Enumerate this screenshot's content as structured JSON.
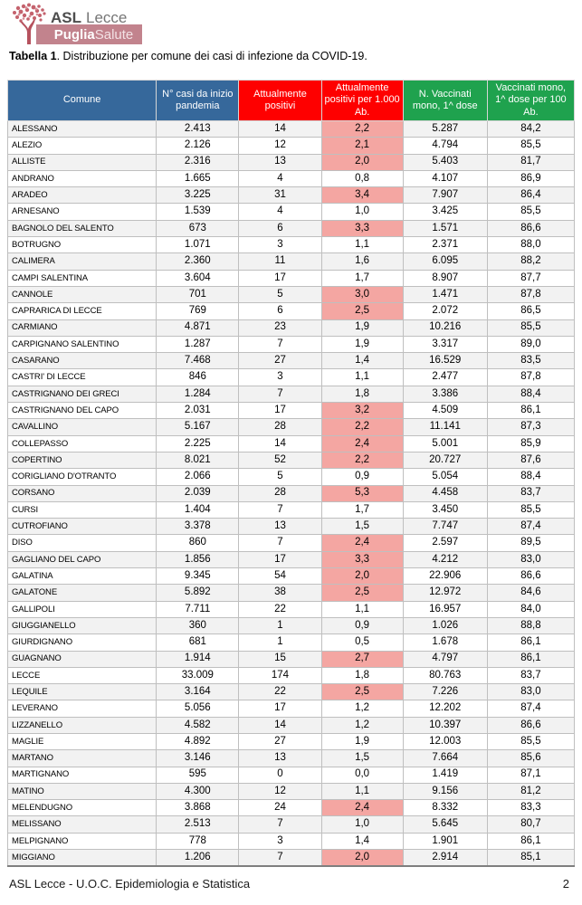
{
  "logo": {
    "org_bold": "ASL",
    "org_rest": "Lecce",
    "banner_bold": "Puglia",
    "banner_rest": "Salute"
  },
  "title": {
    "bold": "Tabella 1",
    "rest": ". Distribuzione per comune dei casi di infezione da COVID-19."
  },
  "table": {
    "columns": [
      {
        "label": "Comune",
        "color": "#36689b"
      },
      {
        "label": "N° casi da inizio pandemia",
        "color": "#36689b"
      },
      {
        "label": "Attualmente positivi",
        "color": "#fe0000"
      },
      {
        "label": "Attualmente positivi per 1.000 Ab.",
        "color": "#fe0000"
      },
      {
        "label": "N. Vaccinati mono, 1^ dose",
        "color": "#1fa24e"
      },
      {
        "label": "Vaccinati mono, 1^ dose per 100 Ab.",
        "color": "#1fa24e"
      }
    ],
    "highlight": {
      "column_index": 3,
      "threshold": 2.0,
      "color": "#f4a6a2"
    },
    "rows": [
      [
        "ALESSANO",
        "2.413",
        "14",
        "2,2",
        "5.287",
        "84,2"
      ],
      [
        "ALEZIO",
        "2.126",
        "12",
        "2,1",
        "4.794",
        "85,5"
      ],
      [
        "ALLISTE",
        "2.316",
        "13",
        "2,0",
        "5.403",
        "81,7"
      ],
      [
        "ANDRANO",
        "1.665",
        "4",
        "0,8",
        "4.107",
        "86,9"
      ],
      [
        "ARADEO",
        "3.225",
        "31",
        "3,4",
        "7.907",
        "86,4"
      ],
      [
        "ARNESANO",
        "1.539",
        "4",
        "1,0",
        "3.425",
        "85,5"
      ],
      [
        "BAGNOLO DEL SALENTO",
        "673",
        "6",
        "3,3",
        "1.571",
        "86,6"
      ],
      [
        "BOTRUGNO",
        "1.071",
        "3",
        "1,1",
        "2.371",
        "88,0"
      ],
      [
        "CALIMERA",
        "2.360",
        "11",
        "1,6",
        "6.095",
        "88,2"
      ],
      [
        "CAMPI SALENTINA",
        "3.604",
        "17",
        "1,7",
        "8.907",
        "87,7"
      ],
      [
        "CANNOLE",
        "701",
        "5",
        "3,0",
        "1.471",
        "87,8"
      ],
      [
        "CAPRARICA DI LECCE",
        "769",
        "6",
        "2,5",
        "2.072",
        "86,5"
      ],
      [
        "CARMIANO",
        "4.871",
        "23",
        "1,9",
        "10.216",
        "85,5"
      ],
      [
        "CARPIGNANO SALENTINO",
        "1.287",
        "7",
        "1,9",
        "3.317",
        "89,0"
      ],
      [
        "CASARANO",
        "7.468",
        "27",
        "1,4",
        "16.529",
        "83,5"
      ],
      [
        "CASTRI' DI LECCE",
        "846",
        "3",
        "1,1",
        "2.477",
        "87,8"
      ],
      [
        "CASTRIGNANO DEI GRECI",
        "1.284",
        "7",
        "1,8",
        "3.386",
        "88,4"
      ],
      [
        "CASTRIGNANO DEL CAPO",
        "2.031",
        "17",
        "3,2",
        "4.509",
        "86,1"
      ],
      [
        "CAVALLINO",
        "5.167",
        "28",
        "2,2",
        "11.141",
        "87,3"
      ],
      [
        "COLLEPASSO",
        "2.225",
        "14",
        "2,4",
        "5.001",
        "85,9"
      ],
      [
        "COPERTINO",
        "8.021",
        "52",
        "2,2",
        "20.727",
        "87,6"
      ],
      [
        "CORIGLIANO D'OTRANTO",
        "2.066",
        "5",
        "0,9",
        "5.054",
        "88,4"
      ],
      [
        "CORSANO",
        "2.039",
        "28",
        "5,3",
        "4.458",
        "83,7"
      ],
      [
        "CURSI",
        "1.404",
        "7",
        "1,7",
        "3.450",
        "85,5"
      ],
      [
        "CUTROFIANO",
        "3.378",
        "13",
        "1,5",
        "7.747",
        "87,4"
      ],
      [
        "DISO",
        "860",
        "7",
        "2,4",
        "2.597",
        "89,5"
      ],
      [
        "GAGLIANO DEL CAPO",
        "1.856",
        "17",
        "3,3",
        "4.212",
        "83,0"
      ],
      [
        "GALATINA",
        "9.345",
        "54",
        "2,0",
        "22.906",
        "86,6"
      ],
      [
        "GALATONE",
        "5.892",
        "38",
        "2,5",
        "12.972",
        "84,6"
      ],
      [
        "GALLIPOLI",
        "7.711",
        "22",
        "1,1",
        "16.957",
        "84,0"
      ],
      [
        "GIUGGIANELLO",
        "360",
        "1",
        "0,9",
        "1.026",
        "88,8"
      ],
      [
        "GIURDIGNANO",
        "681",
        "1",
        "0,5",
        "1.678",
        "86,1"
      ],
      [
        "GUAGNANO",
        "1.914",
        "15",
        "2,7",
        "4.797",
        "86,1"
      ],
      [
        "LECCE",
        "33.009",
        "174",
        "1,8",
        "80.763",
        "83,7"
      ],
      [
        "LEQUILE",
        "3.164",
        "22",
        "2,5",
        "7.226",
        "83,0"
      ],
      [
        "LEVERANO",
        "5.056",
        "17",
        "1,2",
        "12.202",
        "87,4"
      ],
      [
        "LIZZANELLO",
        "4.582",
        "14",
        "1,2",
        "10.397",
        "86,6"
      ],
      [
        "MAGLIE",
        "4.892",
        "27",
        "1,9",
        "12.003",
        "85,5"
      ],
      [
        "MARTANO",
        "3.146",
        "13",
        "1,5",
        "7.664",
        "85,6"
      ],
      [
        "MARTIGNANO",
        "595",
        "0",
        "0,0",
        "1.419",
        "87,1"
      ],
      [
        "MATINO",
        "4.300",
        "12",
        "1,1",
        "9.156",
        "81,2"
      ],
      [
        "MELENDUGNO",
        "3.868",
        "24",
        "2,4",
        "8.332",
        "83,3"
      ],
      [
        "MELISSANO",
        "2.513",
        "7",
        "1,0",
        "5.645",
        "80,7"
      ],
      [
        "MELPIGNANO",
        "778",
        "3",
        "1,4",
        "1.901",
        "86,1"
      ],
      [
        "MIGGIANO",
        "1.206",
        "7",
        "2,0",
        "2.914",
        "85,1"
      ]
    ]
  },
  "footer": {
    "left": "ASL Lecce - U.O.C. Epidemiologia e Statistica",
    "page_number": "2"
  }
}
